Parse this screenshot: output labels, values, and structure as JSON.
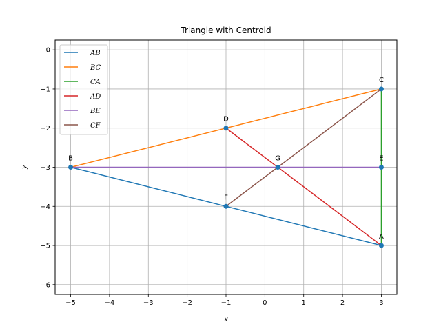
{
  "chart_data": {
    "type": "line",
    "title": "Triangle with Centroid",
    "xlabel": "x",
    "ylabel": "y",
    "xlim": [
      -5.4,
      3.4
    ],
    "ylim": [
      -6.25,
      0.25
    ],
    "xticks": [
      -5,
      -4,
      -3,
      -2,
      -1,
      0,
      1,
      2,
      3
    ],
    "yticks": [
      0,
      -1,
      -2,
      -3,
      -4,
      -5,
      -6
    ],
    "grid": true,
    "legend_position": "top-left",
    "points": [
      {
        "label": "A",
        "x": 3,
        "y": -5
      },
      {
        "label": "B",
        "x": -5,
        "y": -3
      },
      {
        "label": "C",
        "x": 3,
        "y": -1
      },
      {
        "label": "D",
        "x": -1,
        "y": -2
      },
      {
        "label": "E",
        "x": 3,
        "y": -3
      },
      {
        "label": "F",
        "x": -1,
        "y": -4
      },
      {
        "label": "G",
        "x": 0.333,
        "y": -3
      }
    ],
    "series": [
      {
        "name": "AB",
        "color": "#1f77b4",
        "x": [
          3,
          -5
        ],
        "y": [
          -5,
          -3
        ]
      },
      {
        "name": "BC",
        "color": "#ff7f0e",
        "x": [
          -5,
          3
        ],
        "y": [
          -3,
          -1
        ]
      },
      {
        "name": "CA",
        "color": "#2ca02c",
        "x": [
          3,
          3
        ],
        "y": [
          -1,
          -5
        ]
      },
      {
        "name": "AD",
        "color": "#d62728",
        "x": [
          3,
          -1
        ],
        "y": [
          -5,
          -2
        ]
      },
      {
        "name": "BE",
        "color": "#9467bd",
        "x": [
          -5,
          3
        ],
        "y": [
          -3,
          -3
        ]
      },
      {
        "name": "CF",
        "color": "#8c564b",
        "x": [
          3,
          -1
        ],
        "y": [
          -1,
          -4
        ]
      }
    ]
  }
}
